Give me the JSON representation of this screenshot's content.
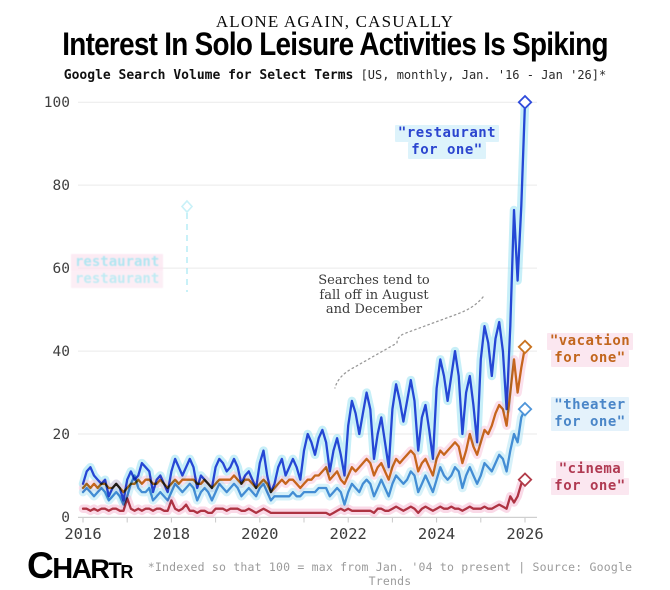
{
  "header": {
    "kicker": "ALONE AGAIN, CASUALLY",
    "title": "Interest In Solo Leisure Activities Is Spiking",
    "subtitle_bold": "Google Search Volume for Select Terms",
    "subtitle_note": " [US, monthly, Jan. '16 - Jan '26]*"
  },
  "chart_data": {
    "type": "line",
    "title": "Interest In Solo Leisure Activities Is Spiking",
    "subtitle": "Google Search Volume for Select Terms [US, monthly, Jan. '16 - Jan '26]*",
    "x_axis": {
      "start": "Jan 2016",
      "end": "Jan 2026",
      "interval": "monthly",
      "tick_years": [
        2016,
        2018,
        2020,
        2022,
        2024,
        2026
      ],
      "minor_tick_years": [
        2016,
        2017,
        2018,
        2019,
        2020,
        2021,
        2022,
        2023,
        2024,
        2025,
        2026
      ]
    },
    "y_axis": {
      "ticks": [
        0,
        20,
        40,
        60,
        80,
        100
      ],
      "range": [
        0,
        100
      ]
    },
    "grid": "horizontal",
    "legend_position": "direct-labels-on-chart",
    "draw_order": [
      2,
      1,
      3,
      0
    ],
    "series": [
      {
        "name": "restaurant for one",
        "label_lines": [
          "\"restaurant",
          "for one\""
        ],
        "color": "#2f4bdb",
        "glow": "#8fe0f2",
        "glow_opacity": 0.5,
        "end_value": 100,
        "values": [
          8,
          11,
          12,
          10,
          9,
          8,
          9,
          5,
          7,
          8,
          7,
          4,
          9,
          11,
          9,
          10,
          13,
          12,
          11,
          6,
          9,
          10,
          8,
          6,
          11,
          14,
          12,
          10,
          12,
          14,
          12,
          7,
          10,
          9,
          8,
          7,
          12,
          14,
          13,
          11,
          12,
          14,
          12,
          8,
          10,
          11,
          9,
          7,
          13,
          16,
          10,
          6,
          8,
          12,
          14,
          10,
          12,
          14,
          12,
          9,
          16,
          20,
          18,
          15,
          19,
          21,
          18,
          11,
          16,
          19,
          15,
          10,
          22,
          28,
          25,
          20,
          25,
          30,
          26,
          14,
          20,
          24,
          18,
          12,
          26,
          32,
          28,
          23,
          28,
          33,
          28,
          16,
          24,
          27,
          21,
          14,
          31,
          38,
          34,
          28,
          34,
          40,
          34,
          20,
          30,
          34,
          27,
          18,
          38,
          46,
          42,
          34,
          43,
          47,
          40,
          26,
          46,
          74,
          57,
          75,
          100
        ]
      },
      {
        "name": "vacation for one",
        "label_lines": [
          "\"vacation",
          "for one\""
        ],
        "color": "#c9731f",
        "glow": "#f6bad4",
        "glow_opacity": 0.45,
        "end_value": 41,
        "values": [
          7,
          8,
          7,
          8,
          7,
          8,
          8,
          7,
          7,
          8,
          7,
          6,
          7,
          8,
          8,
          9,
          8,
          9,
          9,
          8,
          8,
          9,
          8,
          7,
          8,
          9,
          8,
          9,
          9,
          9,
          9,
          8,
          8,
          9,
          8,
          7,
          8,
          9,
          9,
          9,
          9,
          10,
          9,
          8,
          9,
          9,
          8,
          7,
          8,
          9,
          8,
          6,
          7,
          8,
          9,
          8,
          9,
          9,
          8,
          7,
          8,
          9,
          9,
          10,
          10,
          11,
          12,
          9,
          10,
          11,
          9,
          8,
          10,
          12,
          11,
          12,
          13,
          14,
          13,
          10,
          12,
          13,
          11,
          9,
          12,
          14,
          13,
          14,
          15,
          16,
          15,
          11,
          13,
          14,
          12,
          10,
          14,
          16,
          15,
          16,
          17,
          18,
          17,
          13,
          16,
          20,
          17,
          15,
          18,
          21,
          20,
          22,
          25,
          27,
          26,
          22,
          30,
          38,
          30,
          36,
          41
        ]
      },
      {
        "name": "theater for one",
        "label_lines": [
          "\"theater",
          "for one\""
        ],
        "color": "#4f95d9",
        "glow": "#aee4f4",
        "glow_opacity": 0.5,
        "end_value": 26,
        "values": [
          6,
          7,
          6,
          5,
          6,
          7,
          6,
          4,
          5,
          6,
          5,
          3,
          5,
          8,
          10,
          7,
          6,
          6,
          7,
          4,
          5,
          6,
          5,
          4,
          6,
          8,
          7,
          6,
          7,
          8,
          7,
          4,
          6,
          7,
          6,
          4,
          6,
          8,
          7,
          6,
          7,
          8,
          7,
          5,
          6,
          7,
          6,
          5,
          7,
          8,
          6,
          4,
          5,
          5,
          5,
          5,
          5,
          6,
          5,
          5,
          6,
          6,
          6,
          6,
          7,
          7,
          7,
          5,
          6,
          7,
          6,
          3,
          6,
          8,
          7,
          6,
          8,
          9,
          8,
          5,
          7,
          9,
          7,
          5,
          8,
          10,
          9,
          8,
          9,
          11,
          10,
          6,
          8,
          10,
          8,
          6,
          9,
          12,
          10,
          9,
          10,
          12,
          11,
          7,
          10,
          12,
          10,
          8,
          10,
          13,
          12,
          11,
          13,
          15,
          14,
          11,
          16,
          20,
          18,
          24,
          26
        ]
      },
      {
        "name": "cinema for one",
        "label_lines": [
          "\"cinema",
          "for one\""
        ],
        "color": "#b23b49",
        "glow": "#f6bad4",
        "glow_opacity": 0.55,
        "end_value": 9,
        "values": [
          2,
          2,
          1.5,
          2,
          1.5,
          2,
          2,
          1.5,
          2,
          2,
          1.5,
          1.5,
          4.5,
          2,
          1.5,
          2,
          1.5,
          2,
          2,
          1.5,
          2,
          2,
          1.5,
          1.5,
          4,
          2,
          1.5,
          2,
          3,
          1.5,
          1.5,
          1,
          1.5,
          1.5,
          1,
          1,
          2,
          2,
          2,
          1.5,
          2,
          2,
          2,
          1.5,
          1.5,
          2,
          1.5,
          1,
          1.5,
          2,
          1.5,
          1,
          1,
          1,
          1,
          1,
          1,
          1,
          1,
          1,
          1,
          1,
          1,
          1,
          1,
          1,
          1,
          0.5,
          1,
          1.5,
          2,
          1.5,
          2,
          1.5,
          1.5,
          1.5,
          1.5,
          1.5,
          1.5,
          1,
          2,
          2,
          1.5,
          1.5,
          2,
          2.5,
          2,
          1.5,
          2,
          2.5,
          2,
          1,
          2,
          2.5,
          2,
          1.5,
          2,
          2.5,
          2,
          2,
          2.5,
          2,
          2,
          1.5,
          2,
          2.5,
          2,
          2,
          2,
          2.5,
          2,
          2,
          2.5,
          3,
          2.5,
          2,
          5,
          3.5,
          5,
          8,
          9
        ]
      }
    ],
    "annotation": {
      "line1": "Searches tend to",
      "line2": "fall off in August",
      "line3": "and December"
    },
    "ghost_label": {
      "text": "restaurant",
      "color": "#8fdcec",
      "bg": "#fce3ef"
    }
  },
  "footer": {
    "logo_letters": [
      "C",
      "H",
      "A",
      "R",
      "T",
      "R"
    ],
    "footnote": "*Indexed so that 100 = max from Jan. '04 to present | Source: Google Trends"
  }
}
